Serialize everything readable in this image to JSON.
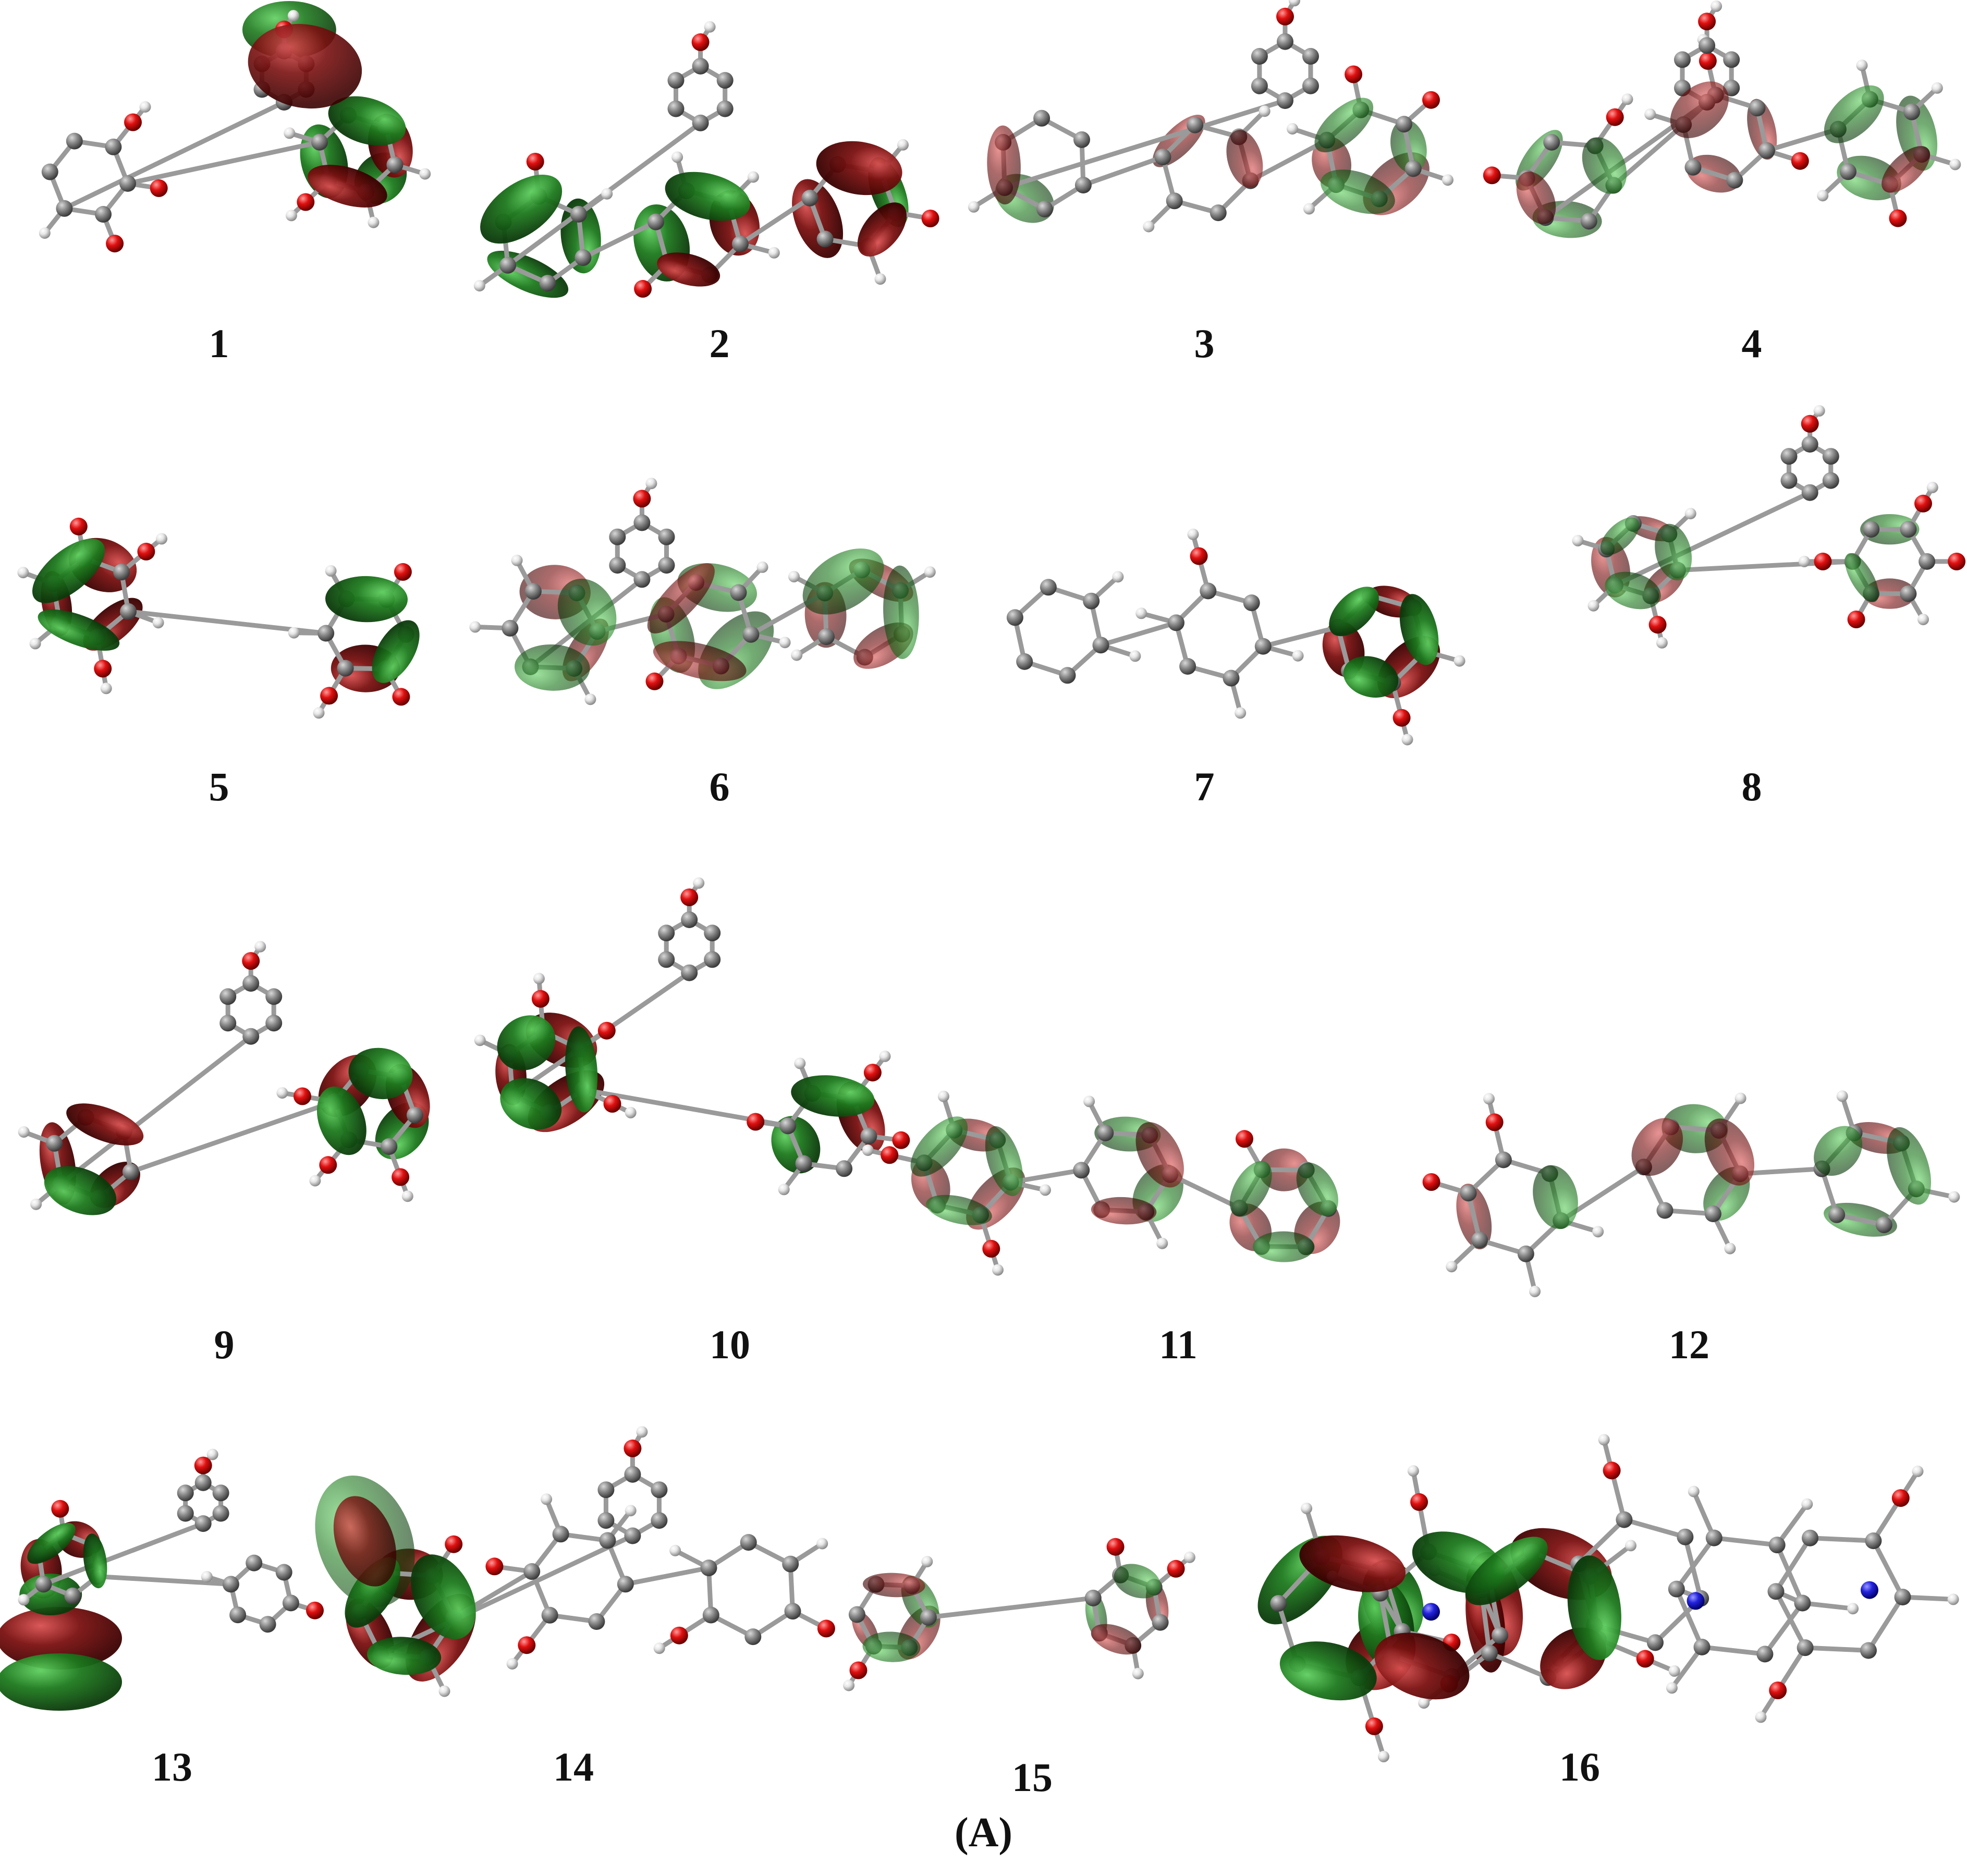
{
  "figure": {
    "panel_label": "(A)",
    "lobe_colors": {
      "positive": "#7a1010",
      "negative": "#1d7a1d"
    },
    "atom_colors": {
      "carbon": "#8c8c8c",
      "hydrogen": "#e6e6e6",
      "oxygen": "#e01010",
      "nitrogen": "#2222dd"
    },
    "molecules": [
      {
        "label": "1"
      },
      {
        "label": "2"
      },
      {
        "label": "3"
      },
      {
        "label": "4"
      },
      {
        "label": "5"
      },
      {
        "label": "6"
      },
      {
        "label": "7"
      },
      {
        "label": "8"
      },
      {
        "label": "9"
      },
      {
        "label": "10"
      },
      {
        "label": "11"
      },
      {
        "label": "12"
      },
      {
        "label": "13"
      },
      {
        "label": "14"
      },
      {
        "label": "15"
      },
      {
        "label": "16"
      }
    ]
  }
}
